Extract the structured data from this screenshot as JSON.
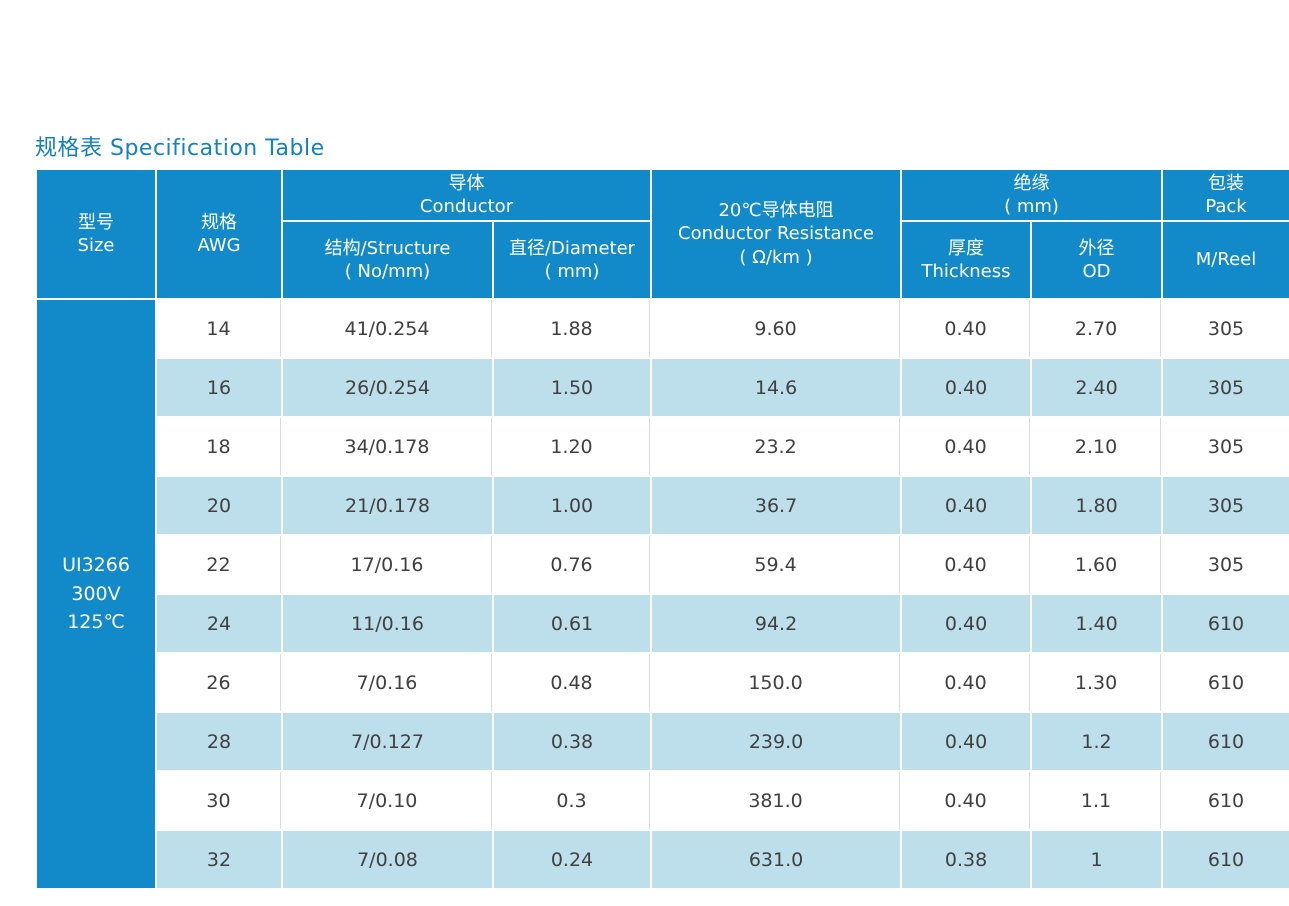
{
  "page": {
    "title": "规格表 Specification Table"
  },
  "colors": {
    "header_blue": "#1289c8",
    "row_alt_blue": "#bddfeb",
    "title_blue": "#1580c2",
    "data_text": "#404040"
  },
  "table": {
    "headers": {
      "size": "型号\nSize",
      "awg": "规格\nAWG",
      "conductor_group": "导体\nConductor",
      "structure": "结构/Structure\n( No/mm)",
      "diameter": "直径/Diameter\n( mm)",
      "resistance": "20℃导体电阻\nConductor Resistance\n( Ω/km )",
      "insulation_group": "绝缘\n( mm)",
      "thickness": "厚度\nThickness",
      "od": "外径\nOD",
      "pack_group": "包装\nPack",
      "reel": "M/Reel"
    },
    "model": "UI3266\n300V\n125℃",
    "rows": [
      [
        "14",
        "41/0.254",
        "1.88",
        "9.60",
        "0.40",
        "2.70",
        "305"
      ],
      [
        "16",
        "26/0.254",
        "1.50",
        "14.6",
        "0.40",
        "2.40",
        "305"
      ],
      [
        "18",
        "34/0.178",
        "1.20",
        "23.2",
        "0.40",
        "2.10",
        "305"
      ],
      [
        "20",
        "21/0.178",
        "1.00",
        "36.7",
        "0.40",
        "1.80",
        "305"
      ],
      [
        "22",
        "17/0.16",
        "0.76",
        "59.4",
        "0.40",
        "1.60",
        "305"
      ],
      [
        "24",
        "11/0.16",
        "0.61",
        "94.2",
        "0.40",
        "1.40",
        "610"
      ],
      [
        "26",
        "7/0.16",
        "0.48",
        "150.0",
        "0.40",
        "1.30",
        "610"
      ],
      [
        "28",
        "7/0.127",
        "0.38",
        "239.0",
        "0.40",
        "1.2",
        "610"
      ],
      [
        "30",
        "7/0.10",
        "0.3",
        "381.0",
        "0.40",
        "1.1",
        "610"
      ],
      [
        "32",
        "7/0.08",
        "0.24",
        "631.0",
        "0.38",
        "1",
        "610"
      ]
    ]
  }
}
